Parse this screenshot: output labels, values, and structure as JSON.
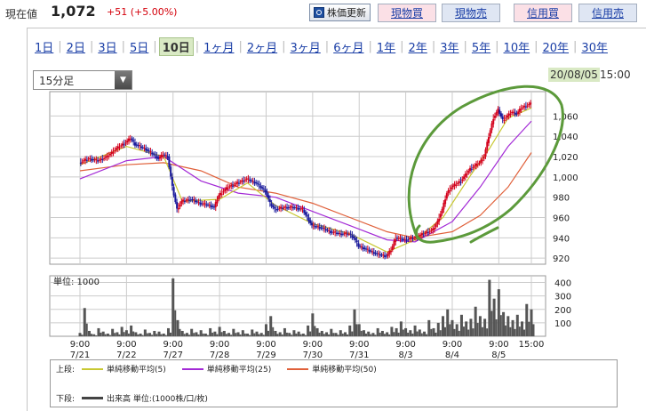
{
  "header": {
    "current_label": "現在値",
    "price": "1,072",
    "change": "+51 (+5.00%)",
    "refresh_label": "株価更新",
    "buttons": [
      "現物買",
      "現物売",
      "信用買",
      "信用売"
    ]
  },
  "periods": [
    "1日",
    "2日",
    "3日",
    "5日",
    "10日",
    "1ヶ月",
    "2ヶ月",
    "3ヶ月",
    "6ヶ月",
    "1年",
    "2年",
    "3年",
    "5年",
    "10年",
    "20年",
    "30年"
  ],
  "active_period": "10日",
  "interval": {
    "selected": "15分足"
  },
  "last_update": {
    "date": "20/08/05",
    "time": "15:00"
  },
  "colors": {
    "up_candle": "#d3001b",
    "down_candle": "#1a1a9c",
    "ma5": "#c8c832",
    "ma25": "#a32ad6",
    "ma50": "#e0603a",
    "volume": "#555555",
    "annotation": "#5c9a3b",
    "date_highlight": "#d9e9c4"
  },
  "chart_data": {
    "type": "line",
    "title": "",
    "price_axis": {
      "ticks": [
        920,
        940,
        960,
        980,
        1000,
        1020,
        1040,
        1060
      ],
      "tick_labels": [
        "920",
        "940",
        "960",
        "980",
        "1,000",
        "1,020",
        "1,040",
        "1,060"
      ],
      "ylim": [
        914,
        1084
      ]
    },
    "x_ticks": [
      {
        "time": "9:00",
        "date": "7/21"
      },
      {
        "time": "9:00",
        "date": "7/22"
      },
      {
        "time": "9:00",
        "date": "7/27"
      },
      {
        "time": "9:00",
        "date": "7/28"
      },
      {
        "time": "9:00",
        "date": "7/29"
      },
      {
        "time": "9:00",
        "date": "7/30"
      },
      {
        "time": "9:00",
        "date": "7/31"
      },
      {
        "time": "9:00",
        "date": "8/3"
      },
      {
        "time": "9:00",
        "date": "8/4"
      },
      {
        "time": "9:00",
        "date": "8/5"
      },
      {
        "time": "15:00",
        "date": ""
      }
    ],
    "price_path": [
      [
        0,
        1014
      ],
      [
        2,
        1018
      ],
      [
        4,
        1016
      ],
      [
        6,
        1020
      ],
      [
        8,
        1028
      ],
      [
        10,
        1034
      ],
      [
        11,
        1038
      ],
      [
        12,
        1032
      ],
      [
        14,
        1028
      ],
      [
        16,
        1022
      ],
      [
        17,
        1018
      ],
      [
        18,
        1022
      ],
      [
        19,
        1020
      ],
      [
        20,
        990
      ],
      [
        21,
        968
      ],
      [
        22,
        976
      ],
      [
        24,
        978
      ],
      [
        26,
        974
      ],
      [
        28,
        972
      ],
      [
        29,
        970
      ],
      [
        30,
        982
      ],
      [
        32,
        990
      ],
      [
        34,
        994
      ],
      [
        36,
        998
      ],
      [
        38,
        994
      ],
      [
        40,
        986
      ],
      [
        41,
        974
      ],
      [
        42,
        968
      ],
      [
        44,
        970
      ],
      [
        46,
        970
      ],
      [
        48,
        968
      ],
      [
        49,
        960
      ],
      [
        50,
        952
      ],
      [
        52,
        950
      ],
      [
        54,
        946
      ],
      [
        56,
        944
      ],
      [
        58,
        944
      ],
      [
        59,
        940
      ],
      [
        60,
        932
      ],
      [
        62,
        928
      ],
      [
        64,
        924
      ],
      [
        66,
        922
      ],
      [
        67,
        928
      ],
      [
        68,
        940
      ],
      [
        70,
        938
      ],
      [
        72,
        940
      ],
      [
        74,
        944
      ],
      [
        76,
        948
      ],
      [
        77,
        956
      ],
      [
        78,
        968
      ],
      [
        79,
        984
      ],
      [
        80,
        990
      ],
      [
        82,
        996
      ],
      [
        84,
        1008
      ],
      [
        86,
        1014
      ],
      [
        87,
        1020
      ],
      [
        88,
        1040
      ],
      [
        89,
        1058
      ],
      [
        90,
        1066
      ],
      [
        91,
        1056
      ],
      [
        92,
        1060
      ],
      [
        93,
        1064
      ],
      [
        94,
        1062
      ],
      [
        95,
        1068
      ],
      [
        96,
        1070
      ],
      [
        97,
        1072
      ]
    ],
    "ma5": [
      [
        0,
        1012
      ],
      [
        10,
        1030
      ],
      [
        18,
        1020
      ],
      [
        22,
        976
      ],
      [
        30,
        978
      ],
      [
        36,
        994
      ],
      [
        42,
        972
      ],
      [
        50,
        954
      ],
      [
        58,
        944
      ],
      [
        66,
        926
      ],
      [
        72,
        938
      ],
      [
        78,
        960
      ],
      [
        84,
        1002
      ],
      [
        88,
        1028
      ],
      [
        92,
        1058
      ],
      [
        97,
        1068
      ]
    ],
    "ma25": [
      [
        0,
        998
      ],
      [
        10,
        1016
      ],
      [
        18,
        1020
      ],
      [
        26,
        996
      ],
      [
        34,
        984
      ],
      [
        42,
        980
      ],
      [
        50,
        966
      ],
      [
        58,
        952
      ],
      [
        66,
        938
      ],
      [
        72,
        936
      ],
      [
        80,
        956
      ],
      [
        86,
        990
      ],
      [
        92,
        1030
      ],
      [
        97,
        1055
      ]
    ],
    "ma50": [
      [
        0,
        1006
      ],
      [
        10,
        1012
      ],
      [
        18,
        1014
      ],
      [
        26,
        1006
      ],
      [
        34,
        990
      ],
      [
        42,
        984
      ],
      [
        50,
        974
      ],
      [
        58,
        960
      ],
      [
        66,
        946
      ],
      [
        72,
        940
      ],
      [
        80,
        946
      ],
      [
        86,
        962
      ],
      [
        92,
        990
      ],
      [
        97,
        1024
      ]
    ],
    "volume_axis": {
      "ticks": [
        100,
        200,
        300,
        400
      ],
      "ylim": [
        0,
        450
      ],
      "unit_label": "単位: 1000"
    },
    "volume": [
      [
        0,
        25
      ],
      [
        1,
        210
      ],
      [
        2,
        40
      ],
      [
        3,
        15
      ],
      [
        4,
        60
      ],
      [
        5,
        35
      ],
      [
        6,
        20
      ],
      [
        7,
        55
      ],
      [
        8,
        30
      ],
      [
        9,
        70
      ],
      [
        10,
        45
      ],
      [
        11,
        80
      ],
      [
        12,
        30
      ],
      [
        13,
        20
      ],
      [
        14,
        50
      ],
      [
        15,
        25
      ],
      [
        16,
        40
      ],
      [
        17,
        35
      ],
      [
        18,
        20
      ],
      [
        19,
        60
      ],
      [
        20,
        430
      ],
      [
        21,
        120
      ],
      [
        22,
        40
      ],
      [
        23,
        25
      ],
      [
        24,
        55
      ],
      [
        25,
        30
      ],
      [
        26,
        45
      ],
      [
        27,
        20
      ],
      [
        28,
        60
      ],
      [
        29,
        35
      ],
      [
        30,
        70
      ],
      [
        31,
        40
      ],
      [
        32,
        25
      ],
      [
        33,
        55
      ],
      [
        34,
        30
      ],
      [
        35,
        45
      ],
      [
        36,
        20
      ],
      [
        37,
        50
      ],
      [
        38,
        35
      ],
      [
        39,
        25
      ],
      [
        40,
        90
      ],
      [
        41,
        150
      ],
      [
        42,
        40
      ],
      [
        43,
        30
      ],
      [
        44,
        60
      ],
      [
        45,
        25
      ],
      [
        46,
        45
      ],
      [
        47,
        35
      ],
      [
        48,
        20
      ],
      [
        49,
        80
      ],
      [
        50,
        170
      ],
      [
        51,
        60
      ],
      [
        52,
        40
      ],
      [
        53,
        30
      ],
      [
        54,
        55
      ],
      [
        55,
        25
      ],
      [
        56,
        45
      ],
      [
        57,
        30
      ],
      [
        58,
        80
      ],
      [
        59,
        200
      ],
      [
        60,
        90
      ],
      [
        61,
        45
      ],
      [
        62,
        35
      ],
      [
        63,
        25
      ],
      [
        64,
        60
      ],
      [
        65,
        40
      ],
      [
        66,
        30
      ],
      [
        67,
        70
      ],
      [
        68,
        60
      ],
      [
        69,
        110
      ],
      [
        70,
        60
      ],
      [
        71,
        45
      ],
      [
        72,
        80
      ],
      [
        73,
        50
      ],
      [
        74,
        35
      ],
      [
        75,
        120
      ],
      [
        76,
        60
      ],
      [
        77,
        100
      ],
      [
        78,
        150
      ],
      [
        79,
        200
      ],
      [
        80,
        120
      ],
      [
        81,
        90
      ],
      [
        82,
        160
      ],
      [
        83,
        110
      ],
      [
        84,
        130
      ],
      [
        85,
        220
      ],
      [
        86,
        150
      ],
      [
        87,
        130
      ],
      [
        88,
        420
      ],
      [
        89,
        280
      ],
      [
        90,
        350
      ],
      [
        91,
        180
      ],
      [
        92,
        150
      ],
      [
        93,
        120
      ],
      [
        94,
        160
      ],
      [
        95,
        110
      ],
      [
        96,
        240
      ],
      [
        97,
        200
      ]
    ]
  },
  "legend": {
    "upper_label": "上段:",
    "ma5_label": "単純移動平均(5)",
    "ma25_label": "単純移動平均(25)",
    "ma50_label": "単純移動平均(50)",
    "lower_label": "下段:",
    "volume_label": "出来高 単位:(1000株/口/枚)"
  }
}
